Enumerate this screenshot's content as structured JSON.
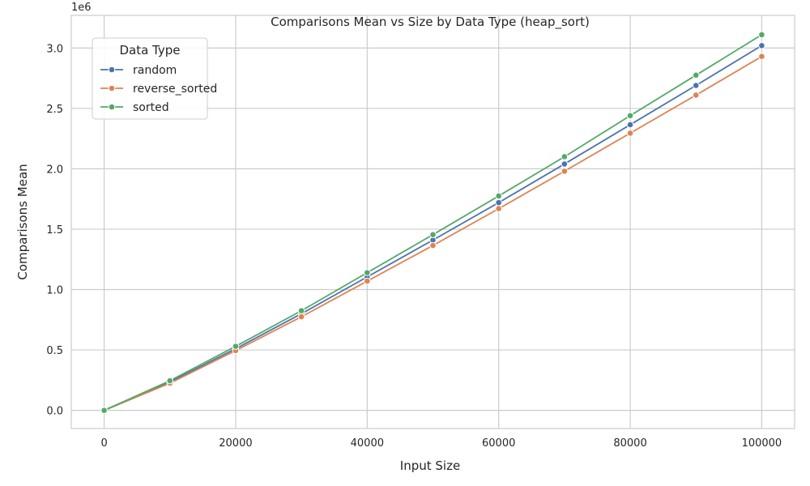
{
  "chart_data": {
    "type": "line",
    "title": "Comparisons Mean vs Size by Data Type (heap_sort)",
    "xlabel": "Input Size",
    "ylabel": "Comparisons Mean",
    "y_offset_label": "1e6",
    "y_scale_factor": 1000000,
    "xlim": [
      -5000,
      105000
    ],
    "ylim": [
      -150000,
      3270000
    ],
    "xticks": [
      0,
      20000,
      40000,
      60000,
      80000,
      100000
    ],
    "xtick_labels": [
      "0",
      "20000",
      "40000",
      "60000",
      "80000",
      "100000"
    ],
    "yticks": [
      0,
      500000,
      1000000,
      1500000,
      2000000,
      2500000,
      3000000
    ],
    "ytick_labels": [
      "0.0",
      "0.5",
      "1.0",
      "1.5",
      "2.0",
      "2.5",
      "3.0"
    ],
    "grid": true,
    "legend": {
      "title": "Data Type",
      "placement": "top-left"
    },
    "x": [
      0,
      10000,
      20000,
      30000,
      40000,
      50000,
      60000,
      70000,
      80000,
      90000,
      100000
    ],
    "series": [
      {
        "name": "random",
        "color": "#4c72b0",
        "values": [
          0,
          235000,
          510000,
          800000,
          1105000,
          1410000,
          1720000,
          2040000,
          2365000,
          2690000,
          3020000
        ]
      },
      {
        "name": "reverse_sorted",
        "color": "#dd8452",
        "values": [
          0,
          225000,
          495000,
          775000,
          1070000,
          1365000,
          1670000,
          1980000,
          2295000,
          2610000,
          2930000
        ]
      },
      {
        "name": "sorted",
        "color": "#55a868",
        "values": [
          0,
          245000,
          530000,
          825000,
          1140000,
          1455000,
          1775000,
          2100000,
          2440000,
          2775000,
          3110000
        ]
      }
    ]
  }
}
